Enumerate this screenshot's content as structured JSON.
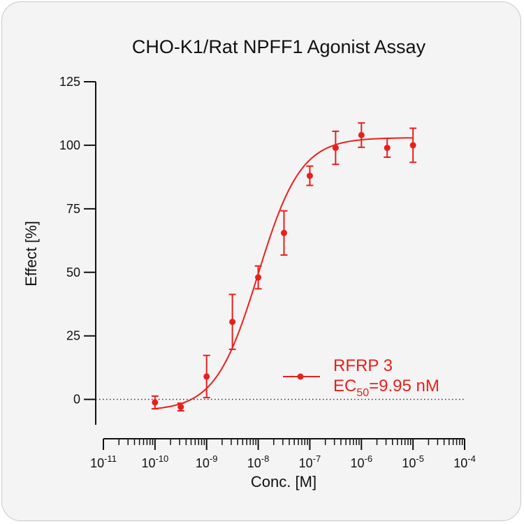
{
  "chart_data": {
    "type": "scatter",
    "title": "CHO-K1/Rat NPFF1 Agonist Assay",
    "xlabel": "Conc. [M]",
    "ylabel": "Effect  [%]",
    "x_scale": "log",
    "xlim": [
      1e-11,
      0.0001
    ],
    "ylim": [
      -10,
      125
    ],
    "y_ticks": [
      0,
      25,
      50,
      75,
      100,
      125
    ],
    "x_ticks": [
      {
        "base": "10",
        "exp": "-11",
        "value": 1e-11
      },
      {
        "base": "10",
        "exp": "-10",
        "value": 1e-10
      },
      {
        "base": "10",
        "exp": "-9",
        "value": 1e-09
      },
      {
        "base": "10",
        "exp": "-8",
        "value": 1e-08
      },
      {
        "base": "10",
        "exp": "-7",
        "value": 1e-07
      },
      {
        "base": "10",
        "exp": "-6",
        "value": 1e-06
      },
      {
        "base": "10",
        "exp": "-5",
        "value": 1e-05
      },
      {
        "base": "10",
        "exp": "-4",
        "value": 0.0001
      }
    ],
    "color": "#e8201c",
    "series": [
      {
        "name": "RFRP 3",
        "x": [
          1e-10,
          3.16e-10,
          1e-09,
          3.16e-09,
          1e-08,
          3.16e-08,
          1e-07,
          3.16e-07,
          1e-06,
          3.16e-06,
          1e-05
        ],
        "y": [
          -1.2,
          -3.0,
          9.0,
          30.5,
          48.0,
          65.5,
          88.0,
          99.0,
          104.0,
          99.0,
          100.0
        ],
        "err": [
          2.5,
          1.5,
          8.3,
          10.8,
          4.5,
          8.7,
          3.8,
          6.5,
          4.8,
          3.7,
          6.7
        ]
      }
    ],
    "fit": {
      "model": "4PL",
      "bottom": -4.5,
      "top": 103,
      "ec50": 9.95e-09,
      "hill": 1.05
    },
    "baseline": 0,
    "legend": {
      "label": "RFRP 3",
      "ec50_prefix": "EC",
      "ec50_sub": "50",
      "ec50_value": "=9.95 nM",
      "placement": "bottom-right"
    }
  }
}
